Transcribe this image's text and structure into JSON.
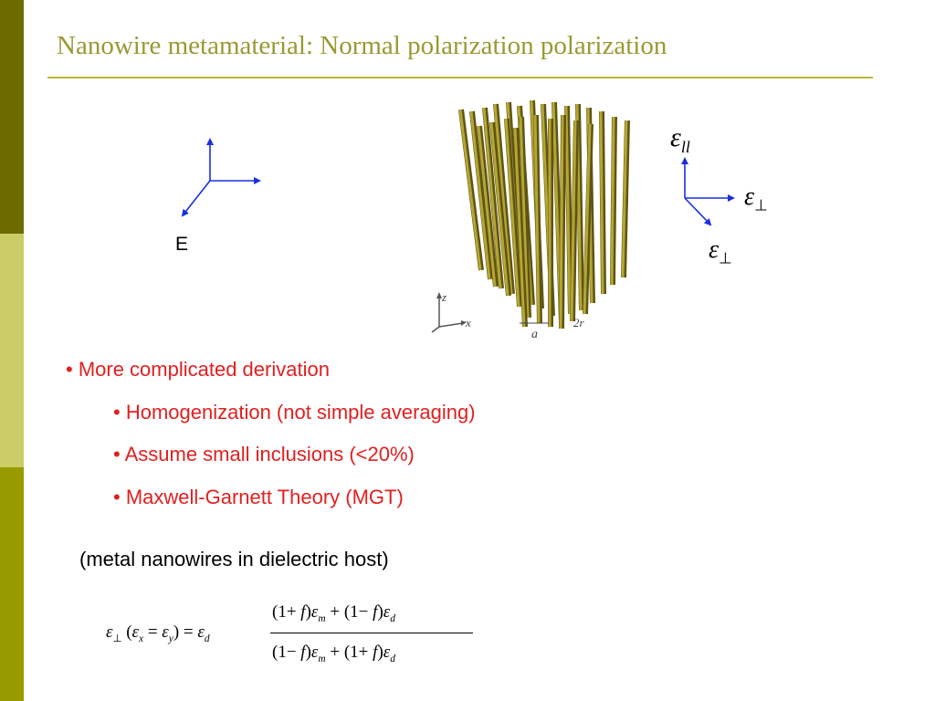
{
  "slide": {
    "title": "Nanowire metamaterial: Normal polarization polarization",
    "colors": {
      "sidebar_top": "#6b6b00",
      "sidebar_mid": "#cccc66",
      "sidebar_bottom": "#999900",
      "title": "#999933",
      "bullet": "#e02020",
      "arrow": "#1a2fe0",
      "wire": "#b5a632"
    }
  },
  "left_axes": {
    "label": "E"
  },
  "right_axes": {
    "eps_parallel": {
      "symbol": "ε",
      "sub": "ll"
    },
    "eps_perp_1": {
      "symbol": "ε",
      "sub": "⊥"
    },
    "eps_perp_2": {
      "symbol": "ε",
      "sub": "⊥"
    }
  },
  "figure": {
    "axis_z": "z",
    "axis_x": "x",
    "label_a": "a",
    "label_2r": "2r"
  },
  "bullets": [
    "• More complicated derivation",
    "• Homogenization (not simple averaging)",
    "• Assume small inclusions (<20%)",
    "• Maxwell-Garnett Theory (MGT)"
  ],
  "note": "(metal nanowires in dielectric host)",
  "formula": {
    "lhs_eps": "ε",
    "lhs_perp": "⊥",
    "lhs_paren_open": " (",
    "lhs_ex": "ε",
    "lhs_x": "x",
    "lhs_eq1": " = ",
    "lhs_ey": "ε",
    "lhs_y": "y",
    "lhs_paren_close": ") = ",
    "lhs_ed": "ε",
    "lhs_d": "d",
    "num_a": "(1+ ",
    "num_f1": "f",
    "num_b": ")",
    "num_em": "ε",
    "num_m": "m",
    "num_c": " + (1− ",
    "num_f2": "f",
    "num_d": ")",
    "num_ed": "ε",
    "num_dsub": "d",
    "den_a": "(1− ",
    "den_f1": "f",
    "den_b": ")",
    "den_em": "ε",
    "den_m": "m",
    "den_c": " + (1+ ",
    "den_f2": "f",
    "den_d": ")",
    "den_ed": "ε",
    "den_dsub": "d"
  }
}
